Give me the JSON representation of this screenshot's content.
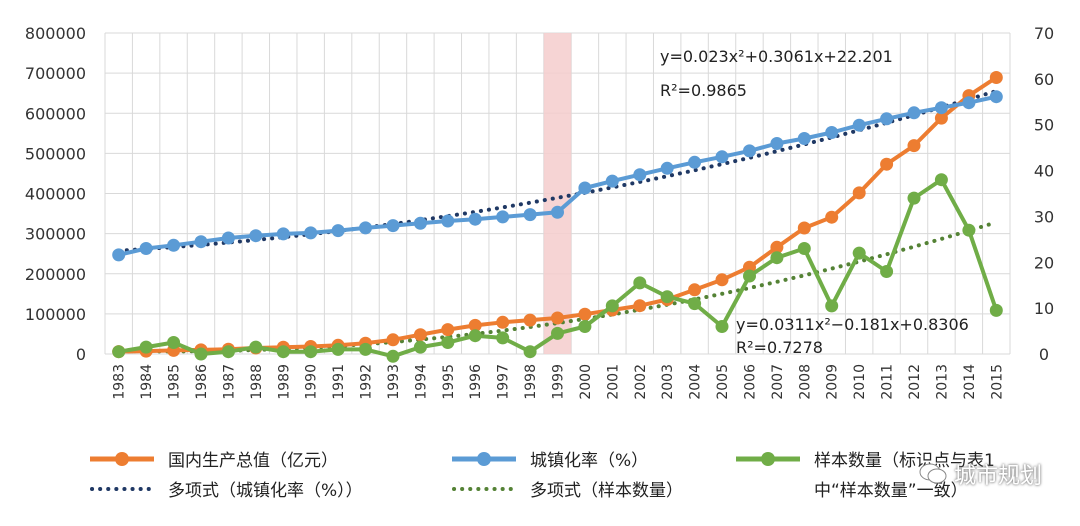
{
  "chart_data": {
    "type": "line",
    "title": "",
    "categories": [
      "1983",
      "1984",
      "1985",
      "1986",
      "1987",
      "1988",
      "1989",
      "1990",
      "1991",
      "1992",
      "1993",
      "1994",
      "1995",
      "1996",
      "1997",
      "1998",
      "1999",
      "2000",
      "2001",
      "2002",
      "2003",
      "2004",
      "2005",
      "2006",
      "2007",
      "2008",
      "2009",
      "2010",
      "2011",
      "2012",
      "2013",
      "2014",
      "2015"
    ],
    "left_axis": {
      "ylim": [
        0,
        800000
      ],
      "ticks": [
        "0",
        "100000",
        "200000",
        "300000",
        "400000",
        "500000",
        "600000",
        "700000",
        "800000"
      ]
    },
    "right_axis": {
      "ylim": [
        0,
        70
      ],
      "ticks": [
        "0",
        "10",
        "20",
        "30",
        "40",
        "50",
        "60",
        "70"
      ]
    },
    "highlight_category": "1999",
    "series": [
      {
        "name": "国内生产总值（亿元）",
        "axis": "left",
        "color": "#ED7D31",
        "values": [
          5962,
          7208,
          9016,
          10275,
          12059,
          15043,
          16992,
          18668,
          21781,
          26923,
          35334,
          48198,
          60794,
          71177,
          78973,
          84402,
          89677,
          99215,
          109655,
          120333,
          135823,
          159878,
          184937,
          216314,
          265810,
          314045,
          340903,
          401513,
          473104,
          519470,
          588019,
          643974,
          689052
        ]
      },
      {
        "name": "城镇化率（%）",
        "axis": "right",
        "color": "#5B9BD5",
        "values": [
          21.6,
          23.0,
          23.7,
          24.5,
          25.3,
          25.8,
          26.2,
          26.4,
          26.9,
          27.5,
          28.0,
          28.5,
          29.0,
          29.4,
          29.9,
          30.4,
          30.9,
          36.2,
          37.7,
          39.1,
          40.5,
          41.8,
          43.0,
          44.3,
          45.9,
          47.0,
          48.3,
          49.9,
          51.3,
          52.6,
          53.7,
          54.8,
          56.1
        ]
      },
      {
        "name": "样本数量（标识点与表1中“样本数量”一致）",
        "axis": "right",
        "color": "#70AD47",
        "values": [
          0.5,
          1.5,
          2.5,
          0,
          0.5,
          1.5,
          0.5,
          0.5,
          1,
          1,
          -0.5,
          1.5,
          2.5,
          4,
          3.5,
          0.5,
          4.5,
          6,
          10.5,
          15.5,
          12.5,
          11,
          6,
          17,
          21,
          23,
          10.5,
          22,
          18,
          34,
          38,
          27,
          9.5
        ]
      }
    ],
    "trendlines": [
      {
        "name": "多项式（城镇化率（%））",
        "of": "城镇化率（%）",
        "style": "dotted",
        "color": "#1F3864",
        "equation": "y=0.023x²+0.3061x+22.201",
        "r2": "R²=0.9865",
        "coef": [
          0.023,
          0.3061,
          22.201
        ]
      },
      {
        "name": "多项式（样本数量）",
        "of": "样本数量",
        "style": "dotted",
        "color": "#548235",
        "equation": "y=0.0311x²−0.181x+0.8306",
        "r2": "R²=0.7278",
        "coef": [
          0.0311,
          -0.181,
          0.8306
        ]
      }
    ]
  },
  "legend": {
    "gdp": "国内生产总值（亿元）",
    "urban": "城镇化率（%）",
    "sample_line1": "样本数量（标识点与表1",
    "sample_line2": "中“样本数量”一致）",
    "trend_urban": "多项式（城镇化率（%））",
    "trend_sample": "多项式（样本数量）"
  },
  "watermark": "城市规划",
  "colors": {
    "gdp": "#ED7D31",
    "urban": "#5B9BD5",
    "sample": "#70AD47",
    "trend_urban": "#1F3864",
    "trend_sample": "#548235",
    "highlight": "#F4CCCC"
  }
}
